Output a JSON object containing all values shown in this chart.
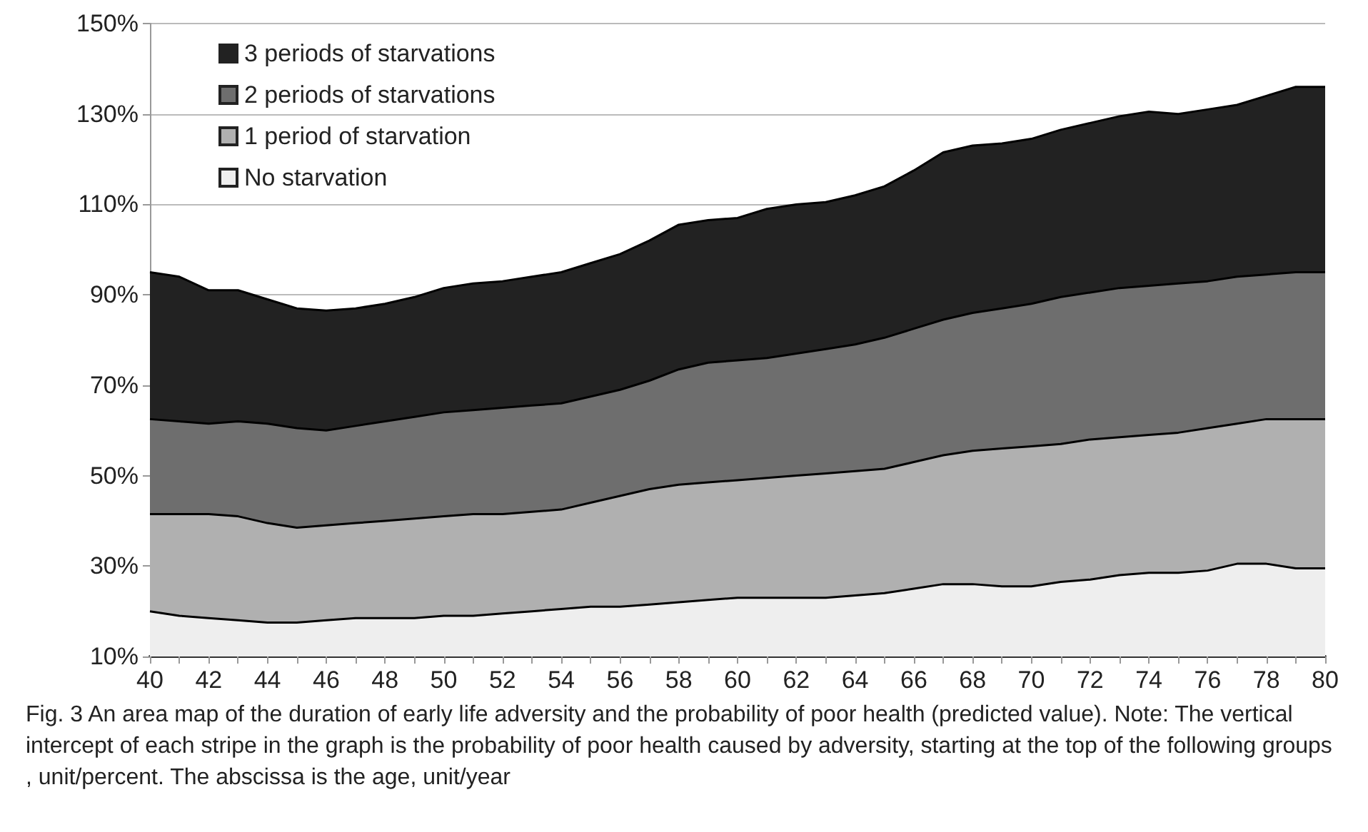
{
  "chart_data": {
    "type": "area",
    "stacked": true,
    "x": [
      40,
      41,
      42,
      43,
      44,
      45,
      46,
      47,
      48,
      49,
      50,
      51,
      52,
      53,
      54,
      55,
      56,
      57,
      58,
      59,
      60,
      61,
      62,
      63,
      64,
      65,
      66,
      67,
      68,
      69,
      70,
      71,
      72,
      73,
      74,
      75,
      76,
      77,
      78,
      79,
      80
    ],
    "series": [
      {
        "name": "No starvation",
        "color": "#eeeeee",
        "values": [
          20,
          19,
          18.5,
          18,
          17.5,
          17.5,
          18,
          18.5,
          18.5,
          18.5,
          19,
          19,
          19.5,
          20,
          20.5,
          21,
          21,
          21.5,
          22,
          22.5,
          23,
          23,
          23,
          23,
          23.5,
          24,
          25,
          26,
          26,
          25.5,
          25.5,
          26.5,
          27,
          28,
          28.5,
          28.5,
          29,
          30.5,
          30.5,
          29.5,
          29.5
        ]
      },
      {
        "name": "1 period of starvation",
        "color": "#b0b0b0",
        "values": [
          21.5,
          22.5,
          23,
          23,
          22,
          21,
          21,
          21,
          21.5,
          22,
          22,
          22.5,
          22,
          22,
          22,
          23,
          24.5,
          25.5,
          26,
          26,
          26,
          26.5,
          27,
          27.5,
          27.5,
          27.5,
          28,
          28.5,
          29.5,
          30.5,
          31,
          30.5,
          31,
          30.5,
          30.5,
          31,
          31.5,
          31,
          32,
          33,
          33
        ]
      },
      {
        "name": "2 periods of starvations",
        "color": "#6e6e6e",
        "values": [
          21,
          20.5,
          20,
          21,
          22,
          22,
          21,
          21.5,
          22,
          22.5,
          23,
          23,
          23.5,
          23.5,
          23.5,
          23.5,
          23.5,
          24,
          25.5,
          26.5,
          26.5,
          26.5,
          27,
          27.5,
          28,
          29,
          29.5,
          30,
          30.5,
          31,
          31.5,
          32.5,
          32.5,
          33,
          33,
          33,
          32.5,
          32.5,
          32,
          32.5,
          32.5
        ]
      },
      {
        "name": "3 periods of starvations",
        "color": "#222222",
        "values": [
          32.5,
          32,
          29.5,
          29,
          27.5,
          26.5,
          26.5,
          26,
          26,
          26.5,
          27.5,
          28,
          28,
          28.5,
          29,
          29.5,
          30,
          31,
          32,
          31.5,
          31.5,
          33,
          33,
          32.5,
          33,
          33.5,
          35,
          37,
          37,
          36.5,
          36.5,
          37,
          37.5,
          38,
          38.5,
          37.5,
          38,
          38,
          39.5,
          41,
          41
        ]
      }
    ],
    "xlim": [
      40,
      80
    ],
    "xticks": [
      40,
      42,
      44,
      46,
      48,
      50,
      52,
      54,
      56,
      58,
      60,
      62,
      64,
      66,
      68,
      70,
      72,
      74,
      76,
      78,
      80
    ],
    "ylim": [
      10,
      150
    ],
    "yticks": [
      {
        "value": 10,
        "label": "10%"
      },
      {
        "value": 30,
        "label": "30%"
      },
      {
        "value": 50,
        "label": "50%"
      },
      {
        "value": 70,
        "label": "70%"
      },
      {
        "value": 90,
        "label": "90%"
      },
      {
        "value": 110,
        "label": "110%"
      },
      {
        "value": 130,
        "label": "130%"
      },
      {
        "value": 150,
        "label": "150%"
      }
    ],
    "grid": "y",
    "legend": "top left",
    "annotations": [
      "Fig. 3 An area map of the duration of early life adversity and the probability of poor health (predicted value). Note: The vertical intercept of each stripe in the graph is the probability of poor health caused by adversity, starting at the top of the following groups, unit/percent. The abscissa is the age, unit/year"
    ]
  }
}
